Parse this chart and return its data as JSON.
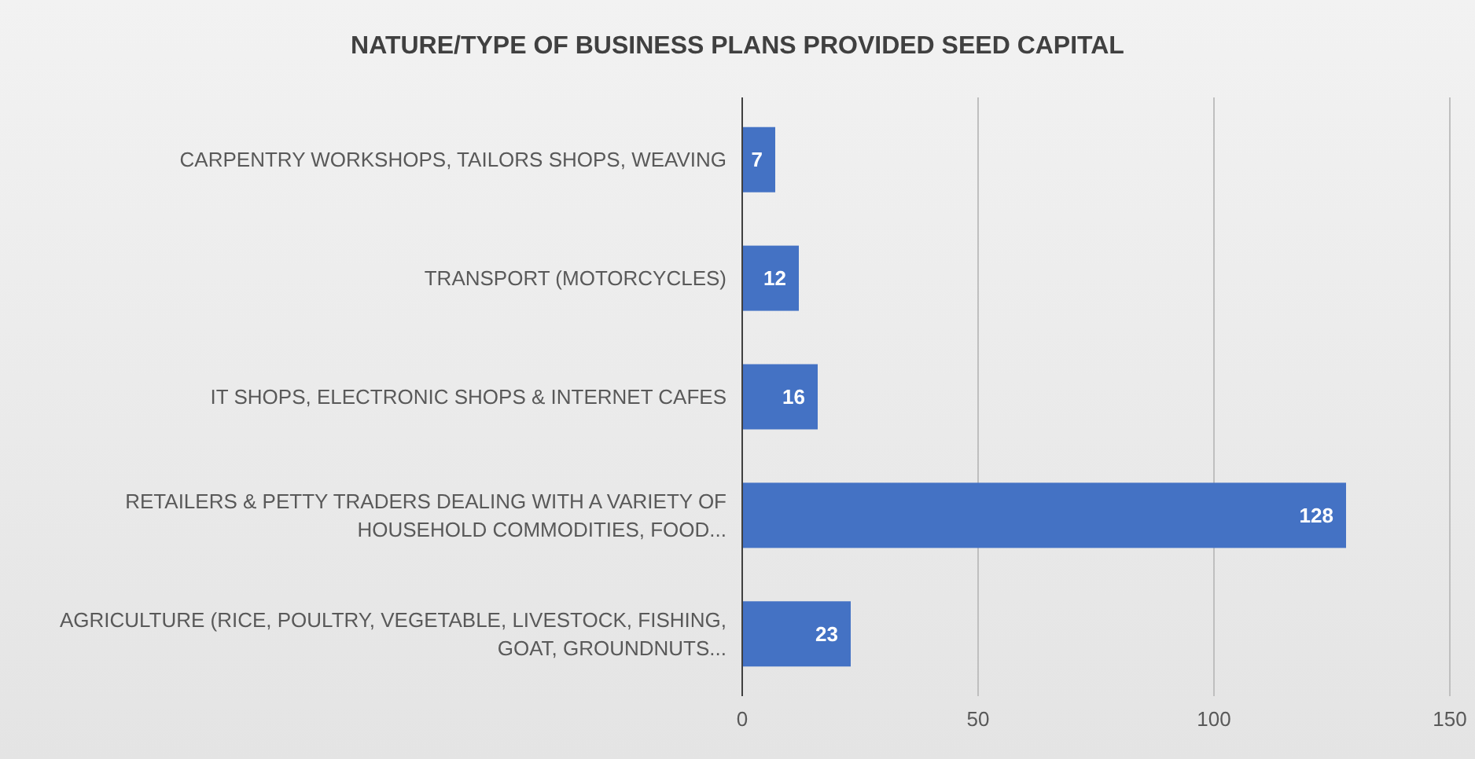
{
  "chart_data": {
    "type": "bar",
    "orientation": "horizontal",
    "title": "NATURE/TYPE OF BUSINESS PLANS PROVIDED SEED CAPITAL",
    "categories": [
      "CARPENTRY WORKSHOPS, TAILORS SHOPS, WEAVING",
      "TRANSPORT (MOTORCYCLES)",
      "IT SHOPS, ELECTRONIC SHOPS & INTERNET CAFES",
      "RETAILERS & PETTY TRADERS DEALING WITH A VARIETY OF HOUSEHOLD COMMODITIES, FOOD...",
      "AGRICULTURE (RICE, POULTRY, VEGETABLE, LIVESTOCK, FISHING, GOAT, GROUNDNUTS..."
    ],
    "values": [
      7,
      12,
      16,
      128,
      23
    ],
    "color": "#4472c4",
    "xlim": [
      0,
      150
    ],
    "xticks": [
      0,
      50,
      100,
      150
    ],
    "grid": "x",
    "data_labels": true
  }
}
